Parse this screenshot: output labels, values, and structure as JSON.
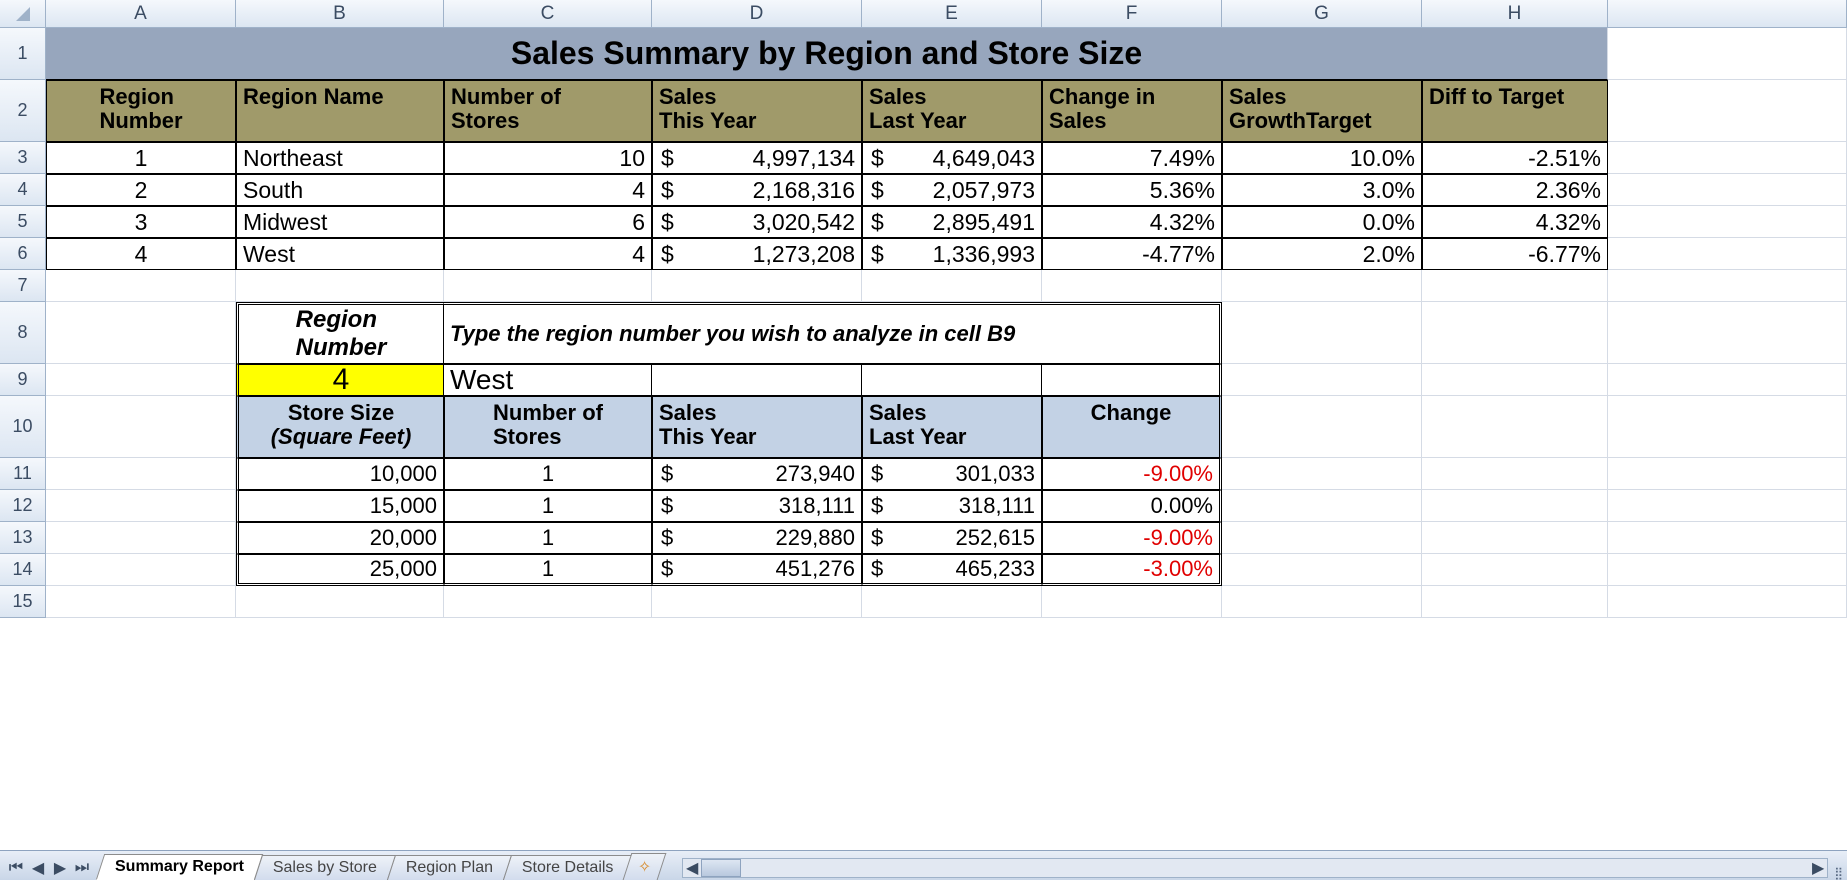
{
  "columns": [
    "A",
    "B",
    "C",
    "D",
    "E",
    "F",
    "G",
    "H"
  ],
  "row_heights": {
    "1": 52,
    "2": 62,
    "8": 62,
    "10": 62
  },
  "title": "Sales Summary by Region and Store Size",
  "main": {
    "headers": {
      "A": "Region\nNumber",
      "B": "Region Name",
      "C": "Number of\nStores",
      "D": "Sales\nThis Year",
      "E": "Sales\nLast Year",
      "F": "Change in\nSales",
      "G": "Sales\nGrowthTarget",
      "H": "Diff to Target"
    },
    "rows": [
      {
        "num": "1",
        "name": "Northeast",
        "stores": "10",
        "this": "4,997,134",
        "last": "4,649,043",
        "chg": "7.49%",
        "tgt": "10.0%",
        "diff": "-2.51%"
      },
      {
        "num": "2",
        "name": "South",
        "stores": "4",
        "this": "2,168,316",
        "last": "2,057,973",
        "chg": "5.36%",
        "tgt": "3.0%",
        "diff": "2.36%"
      },
      {
        "num": "3",
        "name": "Midwest",
        "stores": "6",
        "this": "3,020,542",
        "last": "2,895,491",
        "chg": "4.32%",
        "tgt": "0.0%",
        "diff": "4.32%"
      },
      {
        "num": "4",
        "name": "West",
        "stores": "4",
        "this": "1,273,208",
        "last": "1,336,993",
        "chg": "-4.77%",
        "tgt": "2.0%",
        "diff": "-6.77%"
      }
    ]
  },
  "lookup": {
    "label": "Region\nNumber",
    "instruction": "Type the region number you wish to analyze in cell B9",
    "input_value": "4",
    "result_name": "West",
    "headers": {
      "B": "Store Size\n(Square Feet)",
      "C": "Number of\nStores",
      "D": "Sales\nThis Year",
      "E": "Sales\nLast Year",
      "F": "Change"
    },
    "rows": [
      {
        "size": "10,000",
        "stores": "1",
        "this": "273,940",
        "last": "301,033",
        "chg": "-9.00%",
        "neg": true
      },
      {
        "size": "15,000",
        "stores": "1",
        "this": "318,111",
        "last": "318,111",
        "chg": "0.00%",
        "neg": false
      },
      {
        "size": "20,000",
        "stores": "1",
        "this": "229,880",
        "last": "252,615",
        "chg": "-9.00%",
        "neg": true
      },
      {
        "size": "25,000",
        "stores": "1",
        "this": "451,276",
        "last": "465,233",
        "chg": "-3.00%",
        "neg": true
      }
    ]
  },
  "tabs": [
    "Summary Report",
    "Sales by Store",
    "Region Plan",
    "Store Details"
  ],
  "active_tab": 0,
  "colors": {
    "title_bg": "#97a6bd",
    "header_bg": "#a09a6a",
    "lookup_header_bg": "#c3d2e5",
    "highlight": "#ffff00",
    "grid": "#d5dbe5",
    "neg": "#e00000"
  }
}
